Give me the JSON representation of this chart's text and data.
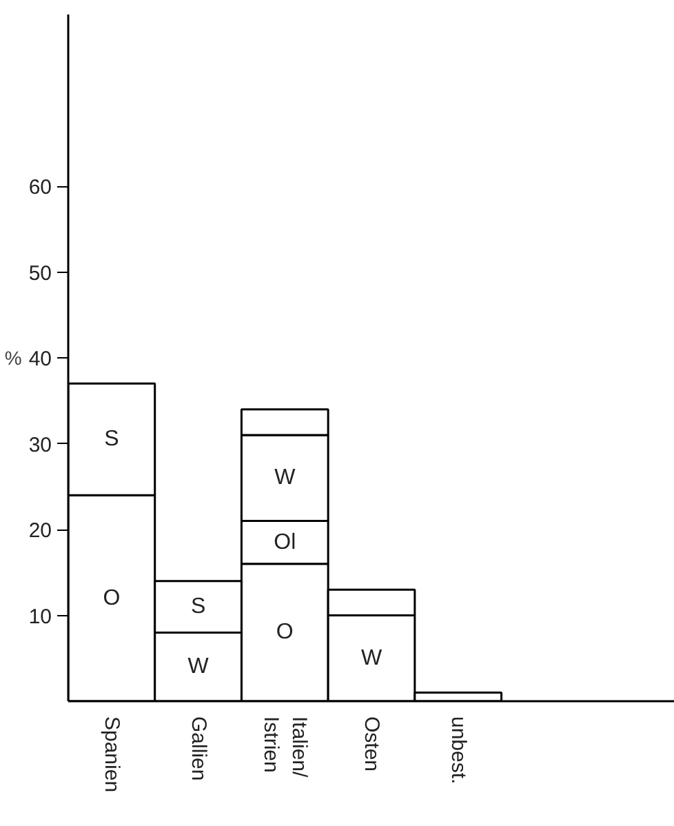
{
  "chart_data": {
    "type": "bar",
    "stacked": true,
    "ylabel": "%",
    "categories": [
      "Spanien",
      "Gallien",
      "Italien/\nIstrien",
      "Osten",
      "unbest."
    ],
    "series": [
      {
        "name": "O",
        "color": "#ffffff",
        "values": [
          24,
          null,
          16,
          null,
          null
        ]
      },
      {
        "name": "Ol",
        "color": "#ffffff",
        "values": [
          null,
          null,
          5,
          null,
          null
        ]
      },
      {
        "name": "W",
        "color": "#ffffff",
        "values": [
          null,
          8,
          10,
          10,
          null
        ]
      },
      {
        "name": "S",
        "color": "#ffffff",
        "values": [
          13,
          6,
          null,
          null,
          null
        ]
      },
      {
        "color": "#ffffff",
        "values": [
          null,
          null,
          3,
          3,
          1
        ]
      }
    ],
    "ylim": [
      0,
      80
    ],
    "yticks": [
      10,
      20,
      30,
      40,
      50,
      60
    ],
    "grid": false
  }
}
